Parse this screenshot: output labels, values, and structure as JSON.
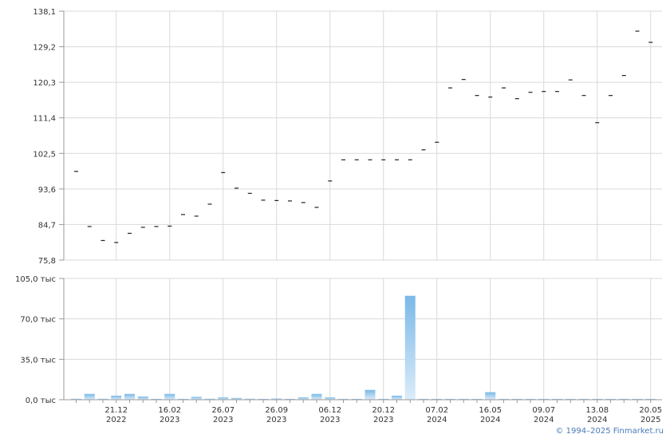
{
  "chart_data": [
    {
      "type": "scatter",
      "marker": "dash",
      "title": "",
      "ylim": [
        75.8,
        138.1
      ],
      "yticks": [
        "138,1",
        "129,2",
        "120,3",
        "111,4",
        "102,5",
        "93,6",
        "84,7",
        "75,8"
      ],
      "values": [
        98.0,
        84.2,
        80.7,
        80.2,
        82.5,
        84.0,
        84.2,
        84.3,
        87.2,
        86.8,
        89.8,
        97.7,
        93.8,
        92.5,
        90.8,
        90.7,
        90.6,
        90.2,
        89.0,
        95.6,
        100.9,
        100.9,
        100.9,
        100.9,
        100.9,
        100.9,
        103.4,
        105.3,
        118.9,
        121.0,
        117.0,
        116.6,
        118.9,
        116.2,
        117.8,
        118.0,
        118.0,
        120.9,
        117.0,
        110.2,
        117.0,
        122.0,
        133.1,
        130.3
      ],
      "grid": true
    },
    {
      "type": "bar",
      "ylim": [
        0,
        105000
      ],
      "yticks": [
        "105,0 тыс",
        "70,0 тыс",
        "35,0 тыс",
        "0,0 тыс"
      ],
      "values": [
        800,
        5000,
        800,
        3500,
        5000,
        2800,
        500,
        5000,
        500,
        2500,
        800,
        2000,
        1500,
        800,
        300,
        1000,
        300,
        2000,
        5000,
        2000,
        300,
        300,
        8500,
        300,
        3500,
        90000,
        300,
        300,
        300,
        300,
        300,
        6500,
        300,
        300,
        300,
        300,
        300,
        300,
        300,
        300,
        300,
        300,
        300,
        300
      ],
      "bar_color_top": "#7ab9e8",
      "bar_color_bottom": "#dcecf9",
      "grid": true
    }
  ],
  "x_axis": {
    "ticks": [
      {
        "date": "21.12",
        "year": "2022"
      },
      {
        "date": "16.02",
        "year": "2023"
      },
      {
        "date": "26.07",
        "year": "2023"
      },
      {
        "date": "26.09",
        "year": "2023"
      },
      {
        "date": "06.12",
        "year": "2023"
      },
      {
        "date": "20.12",
        "year": "2023"
      },
      {
        "date": "07.02",
        "year": "2024"
      },
      {
        "date": "16.05",
        "year": "2024"
      },
      {
        "date": "09.07",
        "year": "2024"
      },
      {
        "date": "13.08",
        "year": "2024"
      },
      {
        "date": "20.05",
        "year": "2025"
      }
    ]
  },
  "copyright": "© 1994–2025 Finmarket.ru",
  "colors": {
    "grid": "#d9d9d9",
    "axis": "#999999",
    "marker": "#222222"
  }
}
